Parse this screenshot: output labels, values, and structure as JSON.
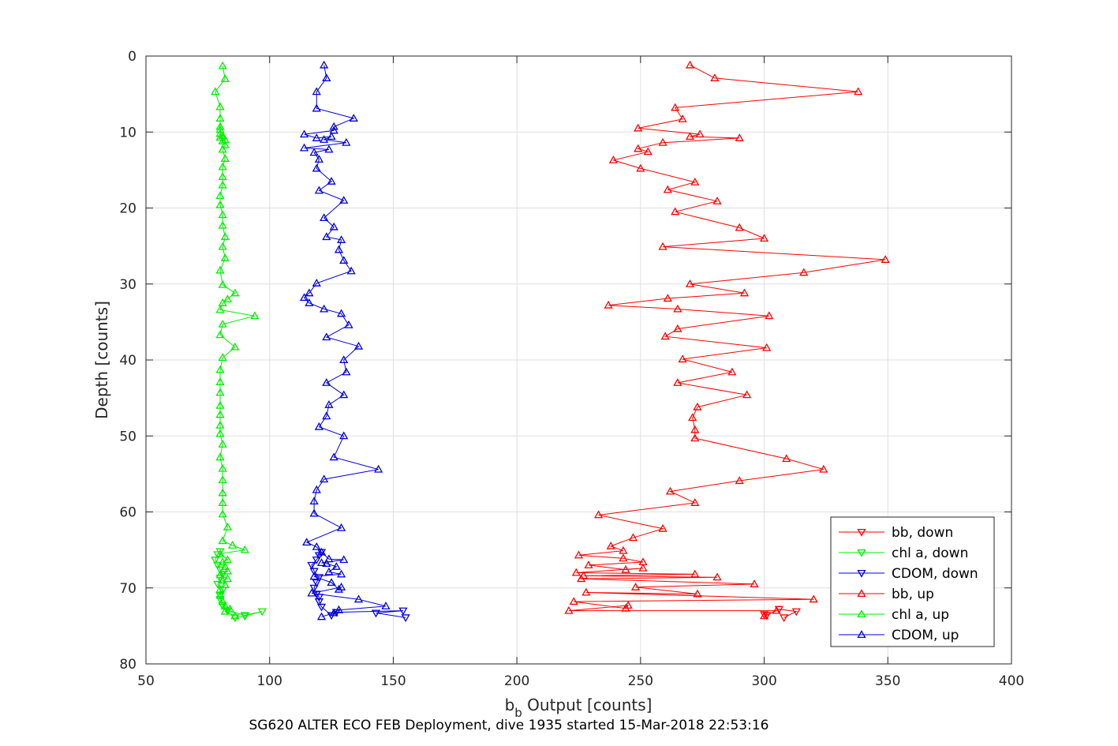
{
  "chart_data": {
    "type": "line",
    "caption": "SG620 ALTER ECO FEB Deployment, dive 1935 started 15-Mar-2018 22:53:16",
    "xlabel_main": "b",
    "xlabel_sub": "b",
    "xlabel_rest": " Output [counts]",
    "ylabel": "Depth [counts]",
    "xlim": [
      50,
      400
    ],
    "ylim": [
      0,
      80
    ],
    "y_reversed": true,
    "x_ticks": [
      50,
      100,
      150,
      200,
      250,
      300,
      350,
      400
    ],
    "y_ticks": [
      0,
      10,
      20,
      30,
      40,
      50,
      60,
      70,
      80
    ],
    "grid": true,
    "legend_position": "bottom-right",
    "legend_labels": [
      "bb, down",
      "chl a, down",
      "CDOM, down",
      "bb, up",
      "chl a, up",
      "CDOM, up"
    ],
    "series": [
      {
        "name": "bb, down",
        "color": "#ff0000",
        "marker": "triangle-down",
        "points": [
          [
            308,
            73.9
          ],
          [
            313,
            73.1
          ],
          [
            306,
            72.8
          ],
          [
            301,
            73.6
          ],
          [
            300,
            73.5
          ]
        ]
      },
      {
        "name": "chl a, down",
        "color": "#00ee00",
        "marker": "triangle-down",
        "points": [
          [
            86,
            73.9
          ],
          [
            90,
            73.7
          ],
          [
            97,
            73.1
          ],
          [
            90,
            73.6
          ],
          [
            83,
            73.0
          ],
          [
            81,
            72.3
          ],
          [
            80,
            71.5
          ],
          [
            80,
            71.0
          ],
          [
            81,
            70.3
          ],
          [
            79,
            69.5
          ],
          [
            80,
            68.7
          ],
          [
            81,
            68.2
          ],
          [
            80,
            67.6
          ],
          [
            79,
            67.0
          ],
          [
            78,
            66.3
          ],
          [
            79,
            65.6
          ],
          [
            80,
            65.2
          ]
        ]
      },
      {
        "name": "CDOM, down",
        "color": "#0000dd",
        "marker": "triangle-down",
        "points": [
          [
            155,
            73.9
          ],
          [
            143,
            73.3
          ],
          [
            154,
            73.0
          ],
          [
            127,
            73.2
          ],
          [
            125,
            73.6
          ],
          [
            121,
            72.5
          ],
          [
            120,
            71.8
          ],
          [
            120,
            71.2
          ],
          [
            119,
            70.8
          ],
          [
            118,
            70.0
          ],
          [
            119,
            69.3
          ],
          [
            120,
            68.6
          ],
          [
            118,
            67.8
          ],
          [
            117,
            67.0
          ],
          [
            119,
            66.3
          ],
          [
            120,
            65.7
          ],
          [
            121,
            65.3
          ]
        ]
      },
      {
        "name": "bb, up",
        "color": "#ff0000",
        "marker": "triangle-up",
        "points": [
          [
            300,
            73.7
          ],
          [
            305,
            73.0
          ],
          [
            221,
            73.0
          ],
          [
            245,
            72.3
          ],
          [
            244,
            72.7
          ],
          [
            223,
            71.8
          ],
          [
            320,
            71.5
          ],
          [
            228,
            70.6
          ],
          [
            273,
            70.8
          ],
          [
            248,
            69.9
          ],
          [
            296,
            69.5
          ],
          [
            226,
            68.8
          ],
          [
            281,
            68.6
          ],
          [
            227,
            68.4
          ],
          [
            272,
            68.2
          ],
          [
            224,
            68.0
          ],
          [
            251,
            67.4
          ],
          [
            244,
            67.6
          ],
          [
            229,
            67.0
          ],
          [
            251,
            66.6
          ],
          [
            243,
            66.1
          ],
          [
            225,
            65.7
          ],
          [
            243,
            65.1
          ],
          [
            238,
            64.5
          ],
          [
            247,
            63.4
          ],
          [
            259,
            62.2
          ],
          [
            233,
            60.4
          ],
          [
            272,
            58.8
          ],
          [
            262,
            57.3
          ],
          [
            290,
            55.9
          ],
          [
            324,
            54.4
          ],
          [
            309,
            53.0
          ],
          [
            272,
            50.3
          ],
          [
            272,
            49.2
          ],
          [
            271,
            47.6
          ],
          [
            273,
            46.2
          ],
          [
            293,
            44.6
          ],
          [
            265,
            43.0
          ],
          [
            287,
            41.6
          ],
          [
            267,
            39.9
          ],
          [
            301,
            38.4
          ],
          [
            260,
            36.9
          ],
          [
            265,
            35.9
          ],
          [
            302,
            34.2
          ],
          [
            265,
            33.3
          ],
          [
            237,
            32.8
          ],
          [
            261,
            31.9
          ],
          [
            292,
            31.2
          ],
          [
            270,
            30.0
          ],
          [
            316,
            28.5
          ],
          [
            349,
            26.8
          ],
          [
            259,
            25.1
          ],
          [
            300,
            24.0
          ],
          [
            290,
            22.6
          ],
          [
            264,
            20.5
          ],
          [
            281,
            19.1
          ],
          [
            261,
            17.6
          ],
          [
            272,
            16.6
          ],
          [
            250,
            14.8
          ],
          [
            239,
            13.7
          ],
          [
            253,
            12.6
          ],
          [
            249,
            12.2
          ],
          [
            259,
            11.4
          ],
          [
            290,
            10.8
          ],
          [
            270,
            10.6
          ],
          [
            274,
            10.3
          ],
          [
            249,
            9.5
          ],
          [
            267,
            8.3
          ],
          [
            264,
            6.8
          ],
          [
            338,
            4.7
          ],
          [
            280,
            2.9
          ],
          [
            270,
            1.2
          ]
        ]
      },
      {
        "name": "chl a, up",
        "color": "#00ee00",
        "marker": "triangle-up",
        "points": [
          [
            86,
            73.7
          ],
          [
            82,
            73.1
          ],
          [
            84,
            72.8
          ],
          [
            82,
            72.4
          ],
          [
            81,
            71.8
          ],
          [
            80,
            71.0
          ],
          [
            80,
            70.2
          ],
          [
            82,
            69.6
          ],
          [
            81,
            69.0
          ],
          [
            83,
            68.8
          ],
          [
            80,
            68.3
          ],
          [
            83,
            67.8
          ],
          [
            82,
            67.2
          ],
          [
            81,
            66.6
          ],
          [
            83,
            66.3
          ],
          [
            80,
            65.5
          ],
          [
            90,
            65.0
          ],
          [
            85,
            64.4
          ],
          [
            81,
            63.8
          ],
          [
            83,
            62.0
          ],
          [
            81,
            60.3
          ],
          [
            81,
            58.8
          ],
          [
            81,
            57.5
          ],
          [
            81,
            55.8
          ],
          [
            81,
            54.3
          ],
          [
            80,
            52.8
          ],
          [
            81,
            51.1
          ],
          [
            80,
            49.7
          ],
          [
            80,
            48.6
          ],
          [
            80,
            47.2
          ],
          [
            80,
            46.0
          ],
          [
            80,
            44.3
          ],
          [
            80,
            42.9
          ],
          [
            80,
            41.3
          ],
          [
            81,
            39.7
          ],
          [
            86,
            38.3
          ],
          [
            80,
            36.7
          ],
          [
            81,
            35.3
          ],
          [
            94,
            34.2
          ],
          [
            80,
            33.4
          ],
          [
            81,
            32.5
          ],
          [
            83,
            32.0
          ],
          [
            86,
            31.2
          ],
          [
            81,
            30.1
          ],
          [
            80,
            28.2
          ],
          [
            82,
            26.6
          ],
          [
            81,
            25.1
          ],
          [
            82,
            23.8
          ],
          [
            81,
            22.3
          ],
          [
            81,
            20.9
          ],
          [
            80,
            19.6
          ],
          [
            80,
            18.4
          ],
          [
            81,
            17.0
          ],
          [
            81,
            15.9
          ],
          [
            81,
            14.6
          ],
          [
            82,
            13.5
          ],
          [
            81,
            12.3
          ],
          [
            82,
            11.7
          ],
          [
            81,
            11.2
          ],
          [
            82,
            11.0
          ],
          [
            80,
            10.7
          ],
          [
            81,
            10.5
          ],
          [
            80,
            10.2
          ],
          [
            80,
            9.7
          ],
          [
            80,
            9.3
          ],
          [
            80,
            8.2
          ],
          [
            80,
            6.7
          ],
          [
            78,
            4.7
          ],
          [
            82,
            3.0
          ],
          [
            81,
            1.3
          ]
        ]
      },
      {
        "name": "CDOM, up",
        "color": "#0000dd",
        "marker": "triangle-up",
        "points": [
          [
            121,
            73.8
          ],
          [
            126,
            73.3
          ],
          [
            128,
            72.9
          ],
          [
            147,
            72.4
          ],
          [
            136,
            71.5
          ],
          [
            117,
            70.7
          ],
          [
            129,
            69.9
          ],
          [
            128,
            70.2
          ],
          [
            125,
            69.3
          ],
          [
            118,
            68.5
          ],
          [
            129,
            68.2
          ],
          [
            124,
            67.9
          ],
          [
            127,
            67.2
          ],
          [
            123,
            66.8
          ],
          [
            121,
            66.7
          ],
          [
            130,
            66.3
          ],
          [
            124,
            66.2
          ],
          [
            121,
            65.3
          ],
          [
            119,
            64.6
          ],
          [
            115,
            64.0
          ],
          [
            129,
            62.1
          ],
          [
            118,
            60.2
          ],
          [
            118,
            58.6
          ],
          [
            119,
            57.1
          ],
          [
            122,
            55.7
          ],
          [
            144,
            54.4
          ],
          [
            126,
            52.8
          ],
          [
            130,
            50.0
          ],
          [
            120,
            48.8
          ],
          [
            123,
            47.4
          ],
          [
            124,
            45.9
          ],
          [
            130,
            44.6
          ],
          [
            123,
            43.0
          ],
          [
            131,
            41.6
          ],
          [
            130,
            40.0
          ],
          [
            136,
            38.2
          ],
          [
            123,
            37.0
          ],
          [
            132,
            35.4
          ],
          [
            129,
            33.9
          ],
          [
            122,
            33.3
          ],
          [
            116,
            32.5
          ],
          [
            114,
            31.8
          ],
          [
            116,
            31.2
          ],
          [
            119,
            29.9
          ],
          [
            133,
            28.3
          ],
          [
            130,
            26.9
          ],
          [
            128,
            25.5
          ],
          [
            129,
            24.2
          ],
          [
            123,
            23.8
          ],
          [
            126,
            22.5
          ],
          [
            122,
            21.3
          ],
          [
            130,
            19.0
          ],
          [
            120,
            17.7
          ],
          [
            125,
            16.5
          ],
          [
            119,
            14.8
          ],
          [
            120,
            13.6
          ],
          [
            118,
            12.7
          ],
          [
            124,
            12.3
          ],
          [
            114,
            12.1
          ],
          [
            131,
            11.4
          ],
          [
            122,
            11.0
          ],
          [
            125,
            10.6
          ],
          [
            119,
            10.8
          ],
          [
            114,
            10.3
          ],
          [
            126,
            9.8
          ],
          [
            126,
            9.3
          ],
          [
            134,
            8.2
          ],
          [
            119,
            6.9
          ],
          [
            119,
            4.7
          ],
          [
            123,
            2.9
          ],
          [
            122,
            1.2
          ]
        ]
      }
    ]
  }
}
